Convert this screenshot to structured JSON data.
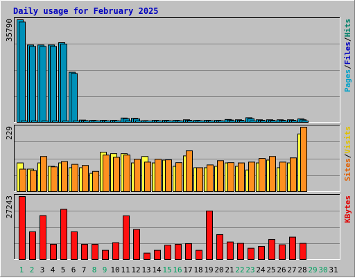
{
  "chart_data": {
    "type": "bar",
    "title": "Daily usage for February 2025",
    "days": [
      "1",
      "2",
      "3",
      "4",
      "5",
      "6",
      "7",
      "8",
      "9",
      "10",
      "11",
      "12",
      "13",
      "14",
      "15",
      "16",
      "17",
      "18",
      "19",
      "20",
      "21",
      "22",
      "23",
      "24",
      "25",
      "26",
      "27",
      "28",
      "29",
      "30",
      "31"
    ],
    "weekend_days": [
      1,
      2,
      8,
      9,
      15,
      16,
      22,
      23,
      29,
      30
    ],
    "panels": [
      {
        "name": "hits_files_pages",
        "max_label": "35790",
        "ymax": 35790,
        "legend": [
          "Pages",
          "/",
          "Files",
          "/",
          "Hits"
        ],
        "legend_colors": [
          "#00a0c8",
          "#000000",
          "#0000c0",
          "#000000",
          "#00806a"
        ],
        "series": [
          {
            "name": "Hits",
            "color": "#00a0c8",
            "values": [
              35790,
              27000,
              27000,
              27000,
              27800,
              17500,
              800,
              700,
              700,
              700,
              1500,
              1400,
              600,
              700,
              700,
              700,
              900,
              700,
              700,
              700,
              1000,
              900,
              1600,
              900,
              900,
              900,
              900,
              1200,
              0,
              0,
              0
            ]
          },
          {
            "name": "Files",
            "color": "#0090b8",
            "values": [
              35000,
              26500,
              26500,
              26500,
              27300,
              17000,
              600,
              550,
              550,
              550,
              1300,
              1200,
              450,
              550,
              550,
              550,
              700,
              550,
              550,
              550,
              800,
              700,
              1300,
              700,
              700,
              700,
              700,
              900,
              0,
              0,
              0
            ]
          },
          {
            "name": "Pages",
            "color": "#00a0c8",
            "values": [
              200,
              180,
              180,
              180,
              190,
              150,
              100,
              100,
              100,
              100,
              150,
              140,
              90,
              100,
              100,
              100,
              120,
              100,
              100,
              100,
              130,
              120,
              150,
              120,
              120,
              120,
              120,
              140,
              0,
              0,
              0
            ]
          }
        ]
      },
      {
        "name": "visits_sites",
        "max_label": "229",
        "ymax": 229,
        "legend": [
          "Sites",
          "/",
          "Visits"
        ],
        "legend_colors": [
          "#e06000",
          "#000000",
          "#e0c000"
        ],
        "series": [
          {
            "name": "Sites",
            "color": "#ffff40",
            "values": [
              102,
              80,
              102,
              90,
              102,
              85,
              85,
              65,
              140,
              135,
              135,
              102,
              125,
              102,
              112,
              90,
              127,
              85,
              85,
              90,
              102,
              90,
              77,
              102,
              112,
              85,
              102,
              205,
              0,
              0,
              0
            ]
          },
          {
            "name": "Visits",
            "color": "#ff9020",
            "values": [
              80,
              75,
              125,
              88,
              107,
              97,
              93,
              72,
              130,
              122,
              130,
              115,
              105,
              115,
              113,
              103,
              145,
              85,
              95,
              110,
              103,
              102,
              105,
              118,
              125,
              105,
              120,
              229,
              0,
              0,
              0
            ]
          }
        ]
      },
      {
        "name": "kbytes",
        "max_label": "27243",
        "ymax": 27243,
        "legend": [
          "KBytes"
        ],
        "legend_colors": [
          "#e00000"
        ],
        "series": [
          {
            "name": "KBytes",
            "color": "#ff1010",
            "values": [
              27243,
              12000,
              19000,
              6600,
              21700,
              12000,
              6600,
              6600,
              4000,
              7300,
              18900,
              13000,
              2800,
              4000,
              6200,
              6600,
              6900,
              4000,
              21000,
              10800,
              7600,
              7000,
              4900,
              5700,
              8700,
              6400,
              9700,
              7000,
              0,
              0,
              0
            ]
          }
        ]
      }
    ]
  }
}
